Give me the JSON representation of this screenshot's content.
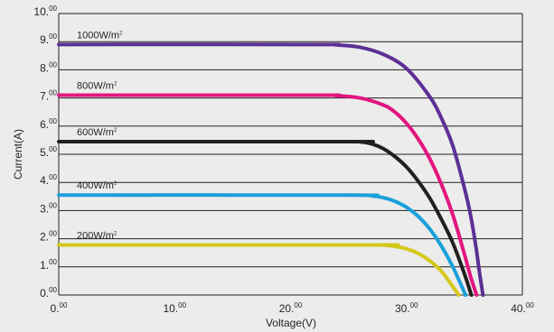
{
  "chart_data": {
    "type": "line",
    "xlabel": "Voltage(V)",
    "ylabel": "Current(A)",
    "xlim": [
      0,
      40
    ],
    "ylim": [
      0,
      10
    ],
    "x_ticks": [
      {
        "int": "0.",
        "dec": "00"
      },
      {
        "int": "10.",
        "dec": "00"
      },
      {
        "int": "20.",
        "dec": "00"
      },
      {
        "int": "30.",
        "dec": "00"
      },
      {
        "int": "40.",
        "dec": "00"
      }
    ],
    "y_ticks": [
      {
        "int": "0.",
        "dec": "00"
      },
      {
        "int": "1.",
        "dec": "00"
      },
      {
        "int": "2.",
        "dec": "00"
      },
      {
        "int": "3.",
        "dec": "00"
      },
      {
        "int": "4.",
        "dec": "00"
      },
      {
        "int": "5.",
        "dec": "00"
      },
      {
        "int": "6.",
        "dec": "00"
      },
      {
        "int": "7.",
        "dec": "00"
      },
      {
        "int": "8.",
        "dec": "00"
      },
      {
        "int": "9.",
        "dec": "00"
      },
      {
        "int": "10.",
        "dec": "00"
      }
    ],
    "grid": true,
    "series": [
      {
        "name": "1000W/m",
        "unit_sup": "2",
        "color": "#5c3095",
        "x": [
          0,
          22,
          24,
          26,
          28,
          30,
          32,
          33,
          34,
          35,
          35.5,
          36,
          36.3,
          36.6
        ],
        "y": [
          8.9,
          8.9,
          8.88,
          8.8,
          8.55,
          8.05,
          7.05,
          6.3,
          5.3,
          3.8,
          2.9,
          1.7,
          0.8,
          0
        ]
      },
      {
        "name": "800W/m",
        "unit_sup": "2",
        "color": "#e3157f",
        "x": [
          0,
          22,
          24,
          26,
          28,
          29,
          30,
          31,
          32,
          33,
          34,
          35,
          35.5,
          36.05
        ],
        "y": [
          7.1,
          7.1,
          7.08,
          7.0,
          6.75,
          6.5,
          6.1,
          5.55,
          4.85,
          3.95,
          2.85,
          1.45,
          0.7,
          0
        ]
      },
      {
        "name": "600W/m",
        "unit_sup": "2",
        "color": "#231f20",
        "x": [
          0,
          25,
          26,
          27,
          28,
          29,
          30,
          31,
          32,
          33,
          34,
          35,
          35.6
        ],
        "y": [
          5.45,
          5.45,
          5.44,
          5.37,
          5.2,
          4.92,
          4.55,
          4.05,
          3.45,
          2.7,
          1.85,
          0.75,
          0
        ]
      },
      {
        "name": "400W/m",
        "unit_sup": "2",
        "color": "#1aa0db",
        "x": [
          0,
          25,
          27,
          28,
          29,
          30,
          31,
          32,
          33,
          34,
          35.1
        ],
        "y": [
          3.55,
          3.55,
          3.52,
          3.46,
          3.33,
          3.12,
          2.8,
          2.35,
          1.75,
          1.0,
          0
        ]
      },
      {
        "name": "200W/m",
        "unit_sup": "2",
        "color": "#d4c81a",
        "x": [
          0,
          27,
          28,
          29,
          30,
          31,
          32,
          33,
          34,
          34.5
        ],
        "y": [
          1.78,
          1.78,
          1.77,
          1.73,
          1.64,
          1.48,
          1.22,
          0.85,
          0.3,
          0
        ]
      }
    ]
  }
}
